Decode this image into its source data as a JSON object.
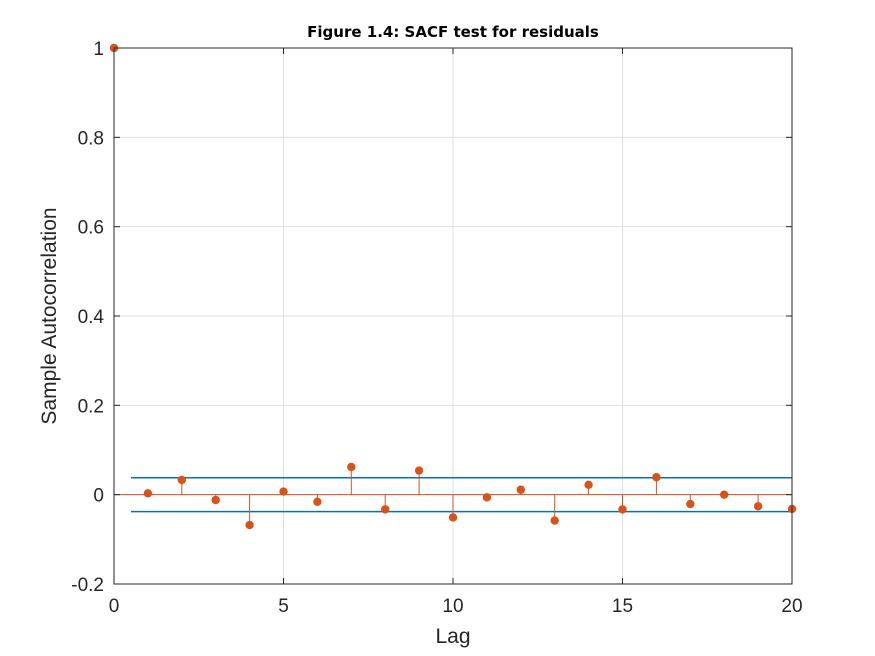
{
  "chart_data": {
    "type": "stem",
    "title": "Figure 1.4: SACF test for residuals",
    "xlabel": "Lag",
    "ylabel": "Sample Autocorrelation",
    "xlim": [
      0,
      20
    ],
    "ylim": [
      -0.2,
      1
    ],
    "xticks": [
      "0",
      "5",
      "10",
      "15",
      "20"
    ],
    "yticks": [
      "-0.2",
      "0",
      "0.2",
      "0.4",
      "0.6",
      "0.8",
      "1"
    ],
    "grid": true,
    "series": [
      {
        "x": [
          0,
          1,
          2,
          3,
          4,
          5,
          6,
          7,
          8,
          9,
          10,
          11,
          12,
          13,
          14,
          15,
          16,
          17,
          18,
          19,
          20
        ],
        "y": [
          1.0,
          0.003,
          0.033,
          -0.012,
          -0.068,
          0.007,
          -0.016,
          0.062,
          -0.033,
          0.054,
          -0.051,
          -0.006,
          0.011,
          -0.058,
          0.022,
          -0.033,
          0.039,
          -0.021,
          0.0,
          -0.026,
          -0.032
        ],
        "color": "#D95319"
      }
    ],
    "bounds": {
      "upper": 0.038,
      "lower": -0.038,
      "x_range": [
        0.5,
        20
      ],
      "color": "#0072BD"
    }
  }
}
